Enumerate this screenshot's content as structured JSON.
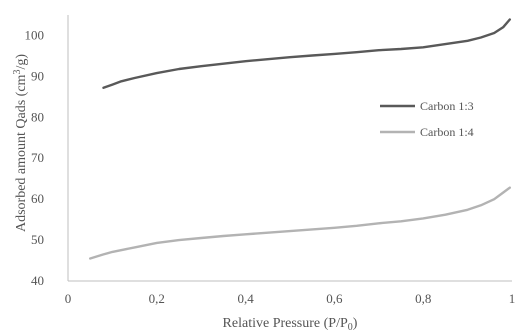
{
  "chart_data": {
    "type": "line",
    "title": "",
    "xlabel": "Relative Pressure (P/P",
    "xlabel_sub": "0",
    "xlabel_end": ")",
    "ylabel": "Adsorbed amount Qads (cm",
    "ylabel_sup": "3",
    "ylabel_end": "/g)",
    "xlim": [
      0,
      1
    ],
    "ylim": [
      40,
      105
    ],
    "x_ticks": [
      0,
      0.2,
      0.4,
      0.6,
      0.8,
      1
    ],
    "x_tick_labels": [
      "0",
      "0,2",
      "0,4",
      "0,6",
      "0,8",
      "1"
    ],
    "y_ticks": [
      40,
      50,
      60,
      70,
      80,
      90,
      100
    ],
    "y_tick_labels": [
      "40",
      "50",
      "60",
      "70",
      "80",
      "90",
      "100"
    ],
    "grid": false,
    "legend_position": "right",
    "series": [
      {
        "name": "Carbon 1:3",
        "color": "#595959",
        "x": [
          0.08,
          0.1,
          0.12,
          0.15,
          0.2,
          0.25,
          0.3,
          0.35,
          0.4,
          0.45,
          0.5,
          0.55,
          0.6,
          0.65,
          0.7,
          0.75,
          0.8,
          0.85,
          0.9,
          0.93,
          0.96,
          0.98,
          0.995
        ],
        "y": [
          87.2,
          88.0,
          88.8,
          89.6,
          90.8,
          91.8,
          92.5,
          93.1,
          93.7,
          94.2,
          94.7,
          95.1,
          95.5,
          95.9,
          96.4,
          96.7,
          97.1,
          97.9,
          98.7,
          99.5,
          100.6,
          102.0,
          103.9
        ]
      },
      {
        "name": "Carbon 1:4",
        "color": "#b3b3b3",
        "x": [
          0.05,
          0.08,
          0.1,
          0.15,
          0.2,
          0.25,
          0.3,
          0.35,
          0.4,
          0.45,
          0.5,
          0.55,
          0.6,
          0.65,
          0.7,
          0.75,
          0.8,
          0.85,
          0.9,
          0.93,
          0.96,
          0.98,
          0.995
        ],
        "y": [
          45.5,
          46.5,
          47.1,
          48.2,
          49.3,
          50.0,
          50.5,
          51.0,
          51.4,
          51.8,
          52.2,
          52.6,
          53.0,
          53.5,
          54.1,
          54.6,
          55.3,
          56.2,
          57.4,
          58.5,
          60.0,
          61.6,
          62.8
        ]
      }
    ]
  }
}
